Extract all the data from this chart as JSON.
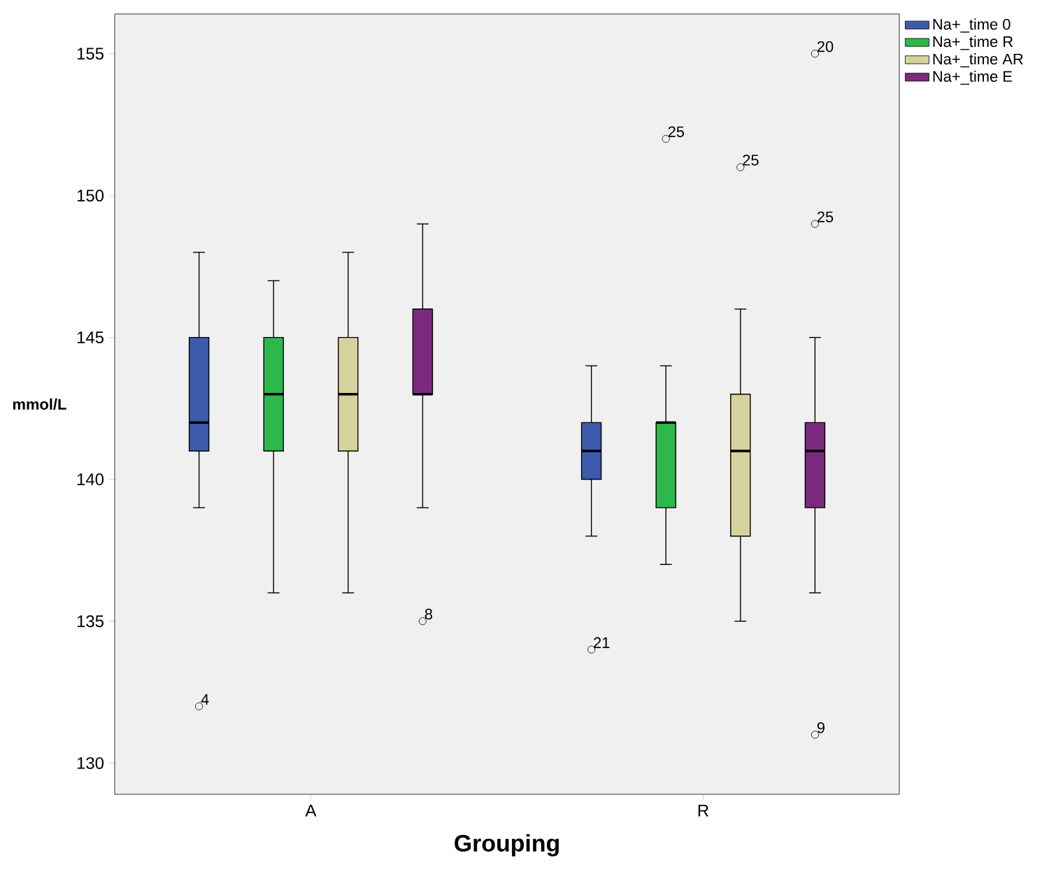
{
  "chart_data": {
    "type": "box",
    "xlabel": "Grouping",
    "ylabel": "mmol/L",
    "categories": [
      "A",
      "R"
    ],
    "series": [
      {
        "name": "Na+_time 0",
        "color": "#3e5bab",
        "boxes": [
          {
            "low": 139,
            "q1": 141,
            "median": 142,
            "q3": 145,
            "high": 148,
            "outliers": [
              132
            ]
          },
          {
            "low": 138,
            "q1": 140,
            "median": 141,
            "q3": 142,
            "high": 144,
            "outliers": [
              134
            ]
          }
        ]
      },
      {
        "name": "Na+_time R",
        "color": "#2db84b",
        "boxes": [
          {
            "low": 136,
            "q1": 141,
            "median": 143,
            "q3": 145,
            "high": 147
          },
          {
            "low": 137,
            "q1": 139,
            "median": 142,
            "q3": 142,
            "high": 144,
            "outliers": [
              152
            ]
          }
        ]
      },
      {
        "name": "Na+_time AR",
        "color": "#d6d29b",
        "boxes": [
          {
            "low": 136,
            "q1": 141,
            "median": 143,
            "q3": 145,
            "high": 148
          },
          {
            "low": 135,
            "q1": 138,
            "median": 141,
            "q3": 143,
            "high": 146,
            "outliers": [
              151
            ]
          }
        ]
      },
      {
        "name": "Na+_time E",
        "color": "#7b2a7e",
        "boxes": [
          {
            "low": 139,
            "q1": 143,
            "median": 143,
            "q3": 146,
            "high": 149,
            "outliers": [
              135
            ]
          },
          {
            "low": 136,
            "q1": 139,
            "median": 141,
            "q3": 142,
            "high": 145,
            "outliers": [
              131,
              149,
              155
            ]
          }
        ]
      }
    ],
    "annotations": [
      "4",
      "21",
      "25",
      "25",
      "8",
      "9",
      "25",
      "20"
    ],
    "ylim": [
      128.9,
      156.4
    ],
    "yticks": [
      130,
      135,
      140,
      145,
      150,
      155
    ],
    "legend": "top right",
    "marker": "circle"
  }
}
